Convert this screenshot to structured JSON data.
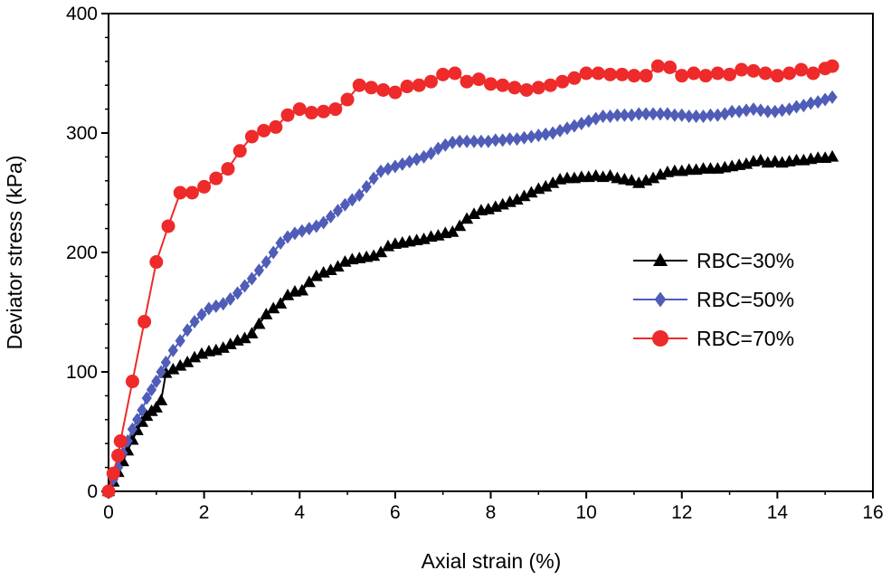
{
  "chart_data": {
    "type": "line",
    "title": "",
    "xlabel": "Axial strain (%)",
    "ylabel": "Deviator stress (kPa)",
    "xlim": [
      0,
      16
    ],
    "ylim": [
      0,
      400
    ],
    "xticks": [
      "0",
      "2",
      "4",
      "6",
      "8",
      "10",
      "12",
      "14",
      "16"
    ],
    "yticks": [
      "0",
      "100",
      "200",
      "300",
      "400"
    ],
    "legend_position": "right",
    "series": [
      {
        "name": "RBC=30%",
        "color": "#000000",
        "marker": "triangle",
        "x": [
          0.0,
          0.1,
          0.2,
          0.3,
          0.4,
          0.5,
          0.6,
          0.7,
          0.8,
          0.9,
          1.0,
          1.1,
          1.2,
          1.35,
          1.5,
          1.65,
          1.8,
          1.95,
          2.1,
          2.25,
          2.4,
          2.55,
          2.7,
          2.85,
          3.0,
          3.15,
          3.3,
          3.45,
          3.6,
          3.75,
          3.9,
          4.05,
          4.2,
          4.35,
          4.5,
          4.65,
          4.8,
          4.95,
          5.1,
          5.25,
          5.4,
          5.55,
          5.7,
          5.85,
          6.0,
          6.15,
          6.3,
          6.45,
          6.6,
          6.75,
          6.9,
          7.05,
          7.2,
          7.35,
          7.5,
          7.65,
          7.8,
          7.95,
          8.1,
          8.25,
          8.4,
          8.55,
          8.7,
          8.85,
          9.0,
          9.15,
          9.3,
          9.45,
          9.6,
          9.75,
          9.9,
          10.05,
          10.2,
          10.35,
          10.5,
          10.65,
          10.8,
          10.95,
          11.1,
          11.25,
          11.4,
          11.55,
          11.7,
          11.85,
          12.0,
          12.15,
          12.3,
          12.45,
          12.6,
          12.75,
          12.9,
          13.05,
          13.2,
          13.35,
          13.5,
          13.65,
          13.8,
          13.95,
          14.1,
          14.25,
          14.4,
          14.55,
          14.7,
          14.85,
          15.0,
          15.15
        ],
        "values": [
          0,
          8,
          16,
          25,
          34,
          43,
          51,
          58,
          63,
          67,
          70,
          76,
          99,
          102,
          105,
          108,
          112,
          115,
          117,
          118,
          120,
          123,
          126,
          128,
          132,
          140,
          148,
          153,
          157,
          164,
          167,
          168,
          175,
          180,
          183,
          185,
          188,
          192,
          194,
          195,
          196,
          197,
          200,
          205,
          207,
          208,
          209,
          210,
          211,
          213,
          214,
          216,
          217,
          222,
          228,
          232,
          235,
          236,
          238,
          240,
          242,
          244,
          247,
          250,
          253,
          255,
          258,
          261,
          262,
          262,
          263,
          263,
          264,
          263,
          264,
          262,
          261,
          260,
          258,
          260,
          262,
          265,
          267,
          268,
          268,
          269,
          269,
          270,
          270,
          270,
          271,
          272,
          273,
          274,
          276,
          277,
          275,
          276,
          275,
          276,
          277,
          277,
          278,
          279,
          279,
          280
        ]
      },
      {
        "name": "RBC=50%",
        "color": "#4f5db8",
        "marker": "diamond",
        "x": [
          0.0,
          0.1,
          0.2,
          0.3,
          0.4,
          0.5,
          0.6,
          0.7,
          0.8,
          0.9,
          1.0,
          1.1,
          1.2,
          1.35,
          1.5,
          1.65,
          1.8,
          1.95,
          2.1,
          2.25,
          2.4,
          2.55,
          2.7,
          2.85,
          3.0,
          3.15,
          3.3,
          3.45,
          3.6,
          3.75,
          3.9,
          4.05,
          4.2,
          4.35,
          4.5,
          4.65,
          4.8,
          4.95,
          5.1,
          5.25,
          5.4,
          5.55,
          5.7,
          5.85,
          6.0,
          6.15,
          6.3,
          6.45,
          6.6,
          6.75,
          6.9,
          7.05,
          7.2,
          7.35,
          7.5,
          7.65,
          7.8,
          7.95,
          8.1,
          8.25,
          8.4,
          8.55,
          8.7,
          8.85,
          9.0,
          9.15,
          9.3,
          9.45,
          9.6,
          9.75,
          9.9,
          10.05,
          10.2,
          10.35,
          10.5,
          10.65,
          10.8,
          10.95,
          11.1,
          11.25,
          11.4,
          11.55,
          11.7,
          11.85,
          12.0,
          12.15,
          12.3,
          12.45,
          12.6,
          12.75,
          12.9,
          13.05,
          13.2,
          13.35,
          13.5,
          13.65,
          13.8,
          13.95,
          14.1,
          14.25,
          14.4,
          14.55,
          14.7,
          14.85,
          15.0,
          15.15
        ],
        "values": [
          0,
          10,
          20,
          32,
          42,
          52,
          60,
          68,
          78,
          85,
          92,
          100,
          108,
          118,
          126,
          135,
          142,
          148,
          153,
          155,
          157,
          161,
          166,
          172,
          178,
          185,
          192,
          200,
          208,
          213,
          216,
          218,
          220,
          222,
          225,
          230,
          235,
          240,
          244,
          248,
          255,
          262,
          268,
          270,
          272,
          274,
          276,
          278,
          280,
          283,
          287,
          290,
          292,
          293,
          293,
          293,
          293,
          293,
          294,
          294,
          295,
          295,
          296,
          297,
          298,
          299,
          300,
          302,
          304,
          306,
          308,
          310,
          312,
          314,
          314,
          315,
          315,
          315,
          316,
          316,
          316,
          316,
          316,
          315,
          315,
          314,
          314,
          314,
          315,
          315,
          316,
          318,
          318,
          319,
          320,
          319,
          318,
          318,
          319,
          320,
          322,
          323,
          325,
          326,
          328,
          330
        ]
      },
      {
        "name": "RBC=70%",
        "color": "#ee2a2a",
        "marker": "circle",
        "x": [
          0.0,
          0.1,
          0.2,
          0.25,
          0.5,
          0.75,
          1.0,
          1.25,
          1.5,
          1.75,
          2.0,
          2.25,
          2.5,
          2.75,
          3.0,
          3.25,
          3.5,
          3.75,
          4.0,
          4.25,
          4.5,
          4.75,
          5.0,
          5.25,
          5.5,
          5.75,
          6.0,
          6.25,
          6.5,
          6.75,
          7.0,
          7.25,
          7.5,
          7.75,
          8.0,
          8.25,
          8.5,
          8.75,
          9.0,
          9.25,
          9.5,
          9.75,
          10.0,
          10.25,
          10.5,
          10.75,
          11.0,
          11.25,
          11.5,
          11.75,
          12.0,
          12.25,
          12.5,
          12.75,
          13.0,
          13.25,
          13.5,
          13.75,
          14.0,
          14.25,
          14.5,
          14.75,
          15.0,
          15.15
        ],
        "values": [
          0,
          15,
          30,
          42,
          92,
          142,
          192,
          222,
          250,
          250,
          255,
          262,
          270,
          285,
          297,
          302,
          305,
          315,
          320,
          317,
          318,
          320,
          328,
          340,
          338,
          336,
          334,
          339,
          340,
          343,
          349,
          350,
          343,
          345,
          341,
          340,
          338,
          336,
          338,
          340,
          343,
          346,
          350,
          350,
          349,
          349,
          348,
          348,
          356,
          355,
          348,
          350,
          348,
          350,
          349,
          353,
          352,
          350,
          348,
          350,
          353,
          350,
          354,
          356
        ]
      }
    ]
  }
}
